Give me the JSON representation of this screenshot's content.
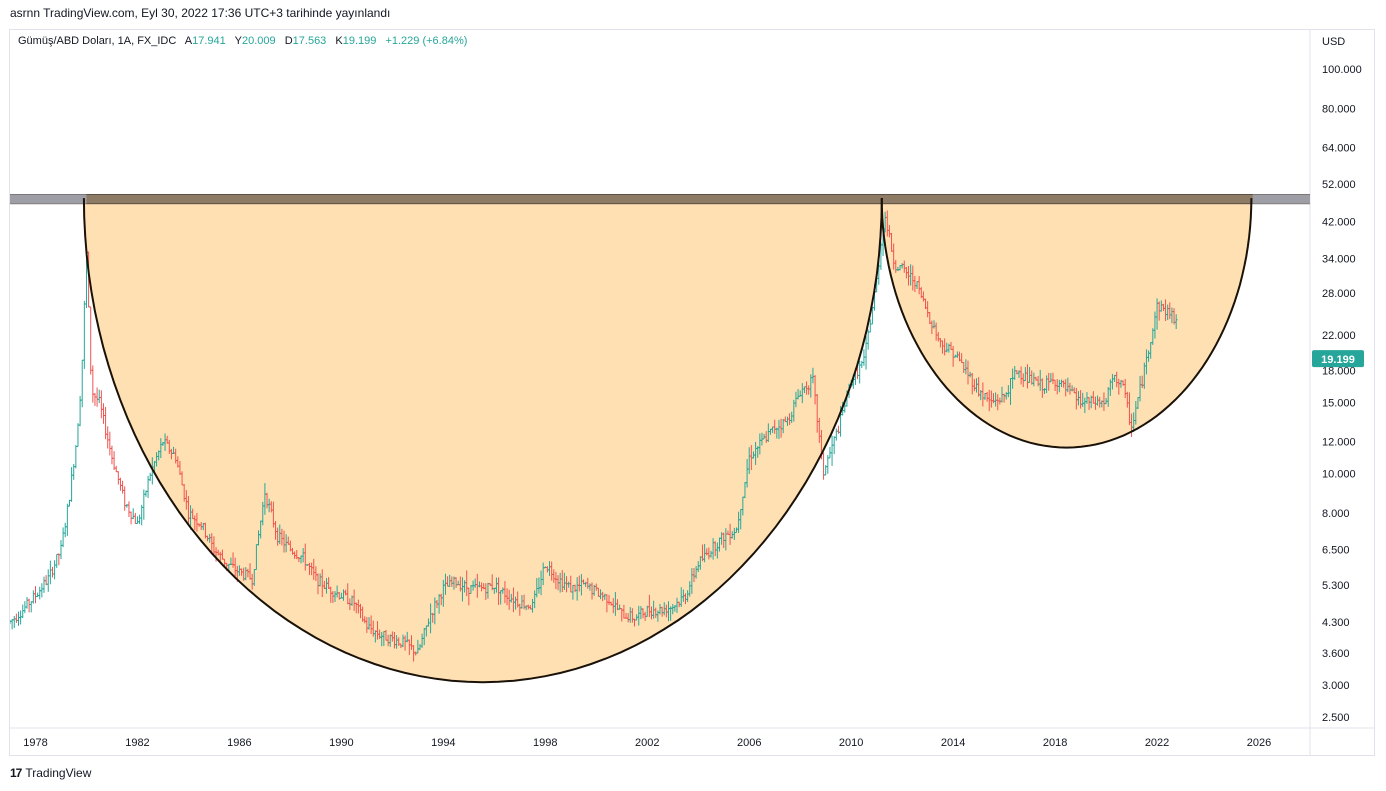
{
  "header": {
    "published_line": "asrnn TradingView.com, Eyl 30, 2022 17:36 UTC+3 tarihinde yayınlandı"
  },
  "legend": {
    "symbol": "Gümüş/ABD Doları, 1A, FX_IDC",
    "open_label": "A",
    "open_value": "17.941",
    "high_label": "Y",
    "high_value": "20.009",
    "low_label": "D",
    "low_value": "17.563",
    "close_label": "K",
    "close_value": "19.199",
    "change": "+1.229 (+6.84%)"
  },
  "footer": {
    "brand": "TradingView",
    "logo_text": "17"
  },
  "colors": {
    "up": "#26a69a",
    "down": "#ef5350",
    "fill": "#ffe0b2",
    "resistance": "#8d7b66",
    "badge": "#26a69a"
  },
  "chart_data": {
    "type": "ohlc",
    "x_axis": {
      "ticks": [
        "1978",
        "1982",
        "1986",
        "1990",
        "1994",
        "1998",
        "2002",
        "2006",
        "2010",
        "2014",
        "2018",
        "2022",
        "2026"
      ],
      "range": [
        1977.0,
        2028.0
      ]
    },
    "y_axis": {
      "label": "USD",
      "scale": "log",
      "ticks": [
        "100.000",
        "80.000",
        "64.000",
        "52.000",
        "42.000",
        "34.000",
        "28.000",
        "22.000",
        "18.000",
        "15.000",
        "12.000",
        "10.000",
        "8.000",
        "6.500",
        "5.300",
        "4.300",
        "3.600",
        "3.000",
        "2.500"
      ],
      "tick_values": [
        100,
        80,
        64,
        52,
        42,
        34,
        28,
        22,
        18,
        15,
        12,
        10,
        8,
        6.5,
        5.3,
        4.3,
        3.6,
        3.0,
        2.5
      ],
      "range": [
        2.35,
        125
      ]
    },
    "last_price": {
      "value": 19.199,
      "label": "19.199"
    },
    "series": [
      {
        "year": [
          1977.0,
          1977.5,
          1978.0,
          1978.5,
          1979.0,
          1979.3,
          1979.6,
          1979.8,
          1980.0,
          1980.2,
          1980.5,
          1981.0,
          1981.5,
          1982.0,
          1982.5,
          1983.0,
          1983.5,
          1984.0,
          1984.5,
          1985.0,
          1985.5,
          1986.0,
          1986.5,
          1987.0,
          1987.5,
          1988.0,
          1988.5,
          1989.0,
          1989.5,
          1990.0,
          1990.5,
          1991.0,
          1991.5,
          1992.0,
          1992.5,
          1993.0,
          1993.5,
          1994.0,
          1994.5,
          1995.0,
          1995.5,
          1996.0,
          1996.5,
          1997.0,
          1997.5,
          1998.0,
          1998.5,
          1999.0,
          1999.5,
          2000.0,
          2000.5,
          2001.0,
          2001.5,
          2002.0,
          2002.5,
          2003.0,
          2003.5,
          2004.0,
          2004.5,
          2005.0,
          2005.5,
          2006.0,
          2006.5,
          2007.0,
          2007.5,
          2008.0,
          2008.5,
          2008.9,
          2009.5,
          2010.0,
          2010.5,
          2011.0,
          2011.3,
          2011.7,
          2012.0,
          2012.5,
          2013.0,
          2013.5,
          2014.0,
          2014.5,
          2015.0,
          2015.5,
          2016.0,
          2016.5,
          2017.0,
          2017.5,
          2018.0,
          2018.5,
          2019.0,
          2019.5,
          2020.0,
          2020.2,
          2020.6,
          2021.0,
          2021.5,
          2022.0,
          2022.5,
          2022.75
        ],
        "price": [
          4.3,
          4.6,
          5.0,
          5.5,
          6.5,
          8.5,
          12,
          17,
          35,
          16,
          15,
          11,
          8.5,
          7.5,
          10,
          12,
          11,
          8,
          7.5,
          6.5,
          6,
          5.7,
          5.5,
          9,
          7,
          6.5,
          6.2,
          5.5,
          5.2,
          5,
          4.8,
          4.2,
          4.0,
          3.9,
          3.8,
          3.6,
          4.5,
          5.2,
          5.4,
          5.2,
          5.2,
          5.3,
          5.0,
          4.8,
          4.7,
          6.0,
          5.5,
          5.2,
          5.3,
          5.1,
          4.9,
          4.5,
          4.4,
          4.6,
          4.6,
          4.7,
          5.0,
          6.0,
          6.5,
          7.0,
          7.3,
          11,
          12,
          13,
          13.5,
          16,
          17,
          10,
          13,
          17,
          19,
          30,
          44,
          33,
          32,
          30,
          25,
          21,
          20,
          18,
          16,
          15,
          15.5,
          18,
          17,
          16.5,
          17,
          16,
          15,
          15,
          15,
          17,
          17,
          13,
          18,
          26,
          25,
          24,
          22,
          19.2
        ]
      }
    ],
    "annotations": [
      {
        "type": "horizontal_band",
        "name": "resistance",
        "low": 46.5,
        "high": 49.0
      },
      {
        "type": "arc",
        "name": "cup",
        "start": [
          1979.9,
          48.0
        ],
        "bottom": [
          1995.2,
          3.05
        ],
        "end": [
          2011.2,
          48.0
        ]
      },
      {
        "type": "arc",
        "name": "handle",
        "start": [
          2011.2,
          48.0
        ],
        "bottom": [
          2018.4,
          11.6
        ],
        "end": [
          2025.7,
          48.0
        ]
      }
    ]
  }
}
